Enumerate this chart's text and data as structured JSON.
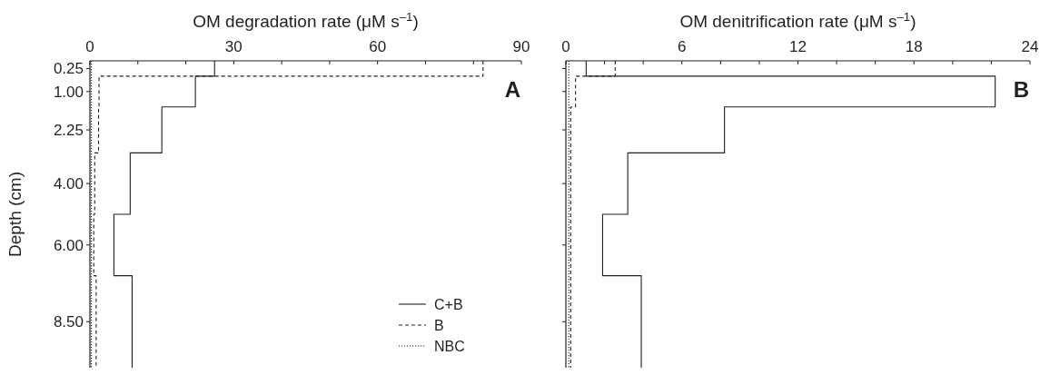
{
  "chart_data": [
    {
      "type": "step",
      "orientation": "horizontal",
      "xlabel": "OM degradation rate (μM s$^{–1}$)",
      "ylabel": "Depth (cm)",
      "annotations": [
        "A"
      ],
      "legend": "bottom right",
      "xlim": [
        0,
        90
      ],
      "xticks": [
        0,
        {
          "value": 10,
          "label": null
        },
        {
          "value": 20,
          "label": null
        },
        30,
        {
          "value": 40,
          "label": null
        },
        {
          "value": 50,
          "label": null
        },
        60,
        {
          "value": 70,
          "label": null
        },
        {
          "value": 80,
          "label": null
        },
        90
      ],
      "ylim": [
        10,
        0
      ],
      "yticks": [
        0.25,
        {
          "value": 1,
          "label": "1.00"
        },
        2.25,
        {
          "value": 4,
          "label": "4.00"
        },
        {
          "value": 6,
          "label": "6.00"
        },
        {
          "value": 8.5,
          "label": "8.50"
        }
      ],
      "series": [
        {
          "name": "C+B",
          "color": "#231f20",
          "line_style": "solid",
          "x": [
            0,
            0.5,
            1.5,
            3,
            5,
            7,
            10
          ],
          "values": [
            26,
            22,
            15,
            8.4,
            5,
            8.8,
            8.8
          ]
        },
        {
          "name": "B",
          "color": "#231f20",
          "line_style": "dashed",
          "x": [
            0,
            0.5,
            1.5,
            3,
            5,
            7,
            10
          ],
          "values": [
            82,
            1.9,
            1.8,
            1,
            0.8,
            1.3,
            1.3
          ]
        },
        {
          "name": "NBC",
          "color": "#231f20",
          "line_style": "dotted",
          "x": [
            0,
            0.5,
            1.5,
            3,
            5,
            7,
            10
          ],
          "values": [
            0.3,
            0.3,
            0.3,
            0.3,
            0.3,
            0.3,
            0.3
          ]
        }
      ]
    },
    {
      "type": "step",
      "orientation": "horizontal",
      "xlabel": "OM denitrification rate (μM s$^{–1}$)",
      "annotations": [
        "B"
      ],
      "tick_labels": "x",
      "xlim": [
        0,
        24
      ],
      "xticks": [
        0,
        {
          "value": 2,
          "label": null
        },
        {
          "value": 4,
          "label": null
        },
        6,
        {
          "value": 8,
          "label": null
        },
        {
          "value": 10,
          "label": null
        },
        12,
        {
          "value": 14,
          "label": null
        },
        {
          "value": 16,
          "label": null
        },
        18,
        {
          "value": 20,
          "label": null
        },
        {
          "value": 22,
          "label": null
        },
        24
      ],
      "ylim": [
        10,
        0
      ],
      "yticks": [
        {
          "value": 0.25,
          "label": null
        },
        {
          "value": 1,
          "label": null
        },
        {
          "value": 2.25,
          "label": null
        },
        {
          "value": 4,
          "label": null
        },
        {
          "value": 6,
          "label": null
        },
        {
          "value": 8.5,
          "label": null
        }
      ],
      "series": [
        {
          "color": "#231f20",
          "line_style": "solid",
          "x": [
            0,
            0.5,
            1.5,
            3,
            5,
            7,
            10
          ],
          "values": [
            1.05,
            22.2,
            8.2,
            3.2,
            1.9,
            3.9,
            3.9
          ]
        },
        {
          "color": "#231f20",
          "line_style": "dashed",
          "x": [
            0,
            0.5,
            1.5,
            3,
            5,
            7,
            10
          ],
          "values": [
            2.55,
            0.5,
            0.25,
            0.25,
            0.25,
            0.25,
            0.25
          ]
        },
        {
          "color": "#231f20",
          "line_style": "dotted",
          "x": [
            0,
            0.5,
            1.5,
            3,
            5,
            7,
            10
          ],
          "values": [
            0.15,
            0.15,
            0.15,
            0.15,
            0.15,
            0.15,
            0.15
          ]
        }
      ]
    }
  ]
}
